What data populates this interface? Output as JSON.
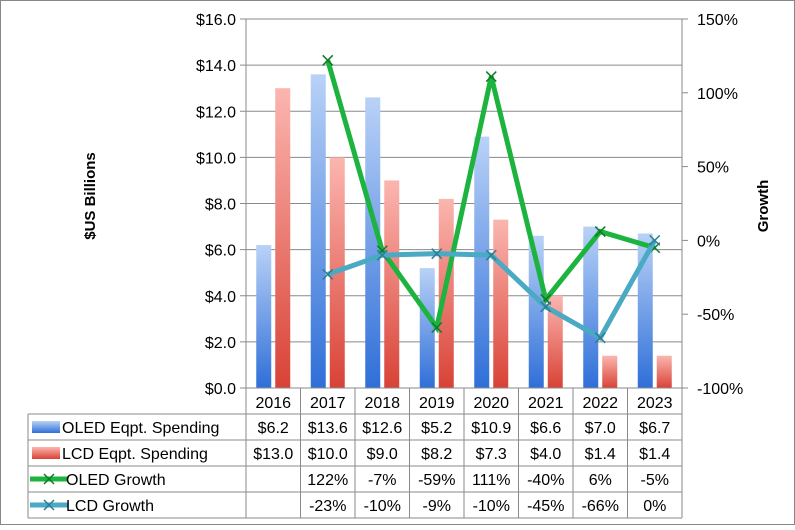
{
  "chart_data": {
    "type": "bar",
    "categories": [
      "2016",
      "2017",
      "2018",
      "2019",
      "2020",
      "2021",
      "2022",
      "2023"
    ],
    "ylabel": "$US Billions",
    "y2label": "Growth",
    "ylim": [
      0,
      16
    ],
    "y2lim": [
      -100,
      150
    ],
    "yticks": [
      "$16.0",
      "$14.0",
      "$12.0",
      "$10.0",
      "$8.0",
      "$6.0",
      "$4.0",
      "$2.0",
      "$0.0"
    ],
    "y2ticks": [
      "150%",
      "100%",
      "50%",
      "0%",
      "-50%",
      "-100%"
    ],
    "grid": "horizontal",
    "legend": "data table below chart",
    "series": [
      {
        "name": "OLED Eqpt. Spending",
        "kind": "bar",
        "color": "#5b8fe6",
        "values": [
          6.2,
          13.6,
          12.6,
          5.2,
          10.9,
          6.6,
          7.0,
          6.7
        ],
        "labels": [
          "$6.2",
          "$13.6",
          "$12.6",
          "$5.2",
          "$10.9",
          "$6.6",
          "$7.0",
          "$6.7"
        ]
      },
      {
        "name": "LCD Eqpt. Spending",
        "kind": "bar",
        "color": "#ef5b52",
        "values": [
          13.0,
          10.0,
          9.0,
          8.2,
          7.3,
          4.0,
          1.4,
          1.4
        ],
        "labels": [
          "$13.0",
          "$10.0",
          "$9.0",
          "$8.2",
          "$7.3",
          "$4.0",
          "$1.4",
          "$1.4"
        ]
      },
      {
        "name": "OLED Growth",
        "kind": "line",
        "axis": "right",
        "color": "#1db33f",
        "values": [
          null,
          122,
          -7,
          -59,
          111,
          -40,
          6,
          -5
        ],
        "labels": [
          "",
          "122%",
          "-7%",
          "-59%",
          "111%",
          "-40%",
          "6%",
          "-5%"
        ]
      },
      {
        "name": "LCD Growth",
        "kind": "line",
        "axis": "right",
        "color": "#4aaac4",
        "values": [
          null,
          -23,
          -10,
          -9,
          -10,
          -45,
          -66,
          0
        ],
        "labels": [
          "",
          "-23%",
          "-10%",
          "-9%",
          "-10%",
          "-45%",
          "-66%",
          "0%"
        ]
      }
    ]
  }
}
